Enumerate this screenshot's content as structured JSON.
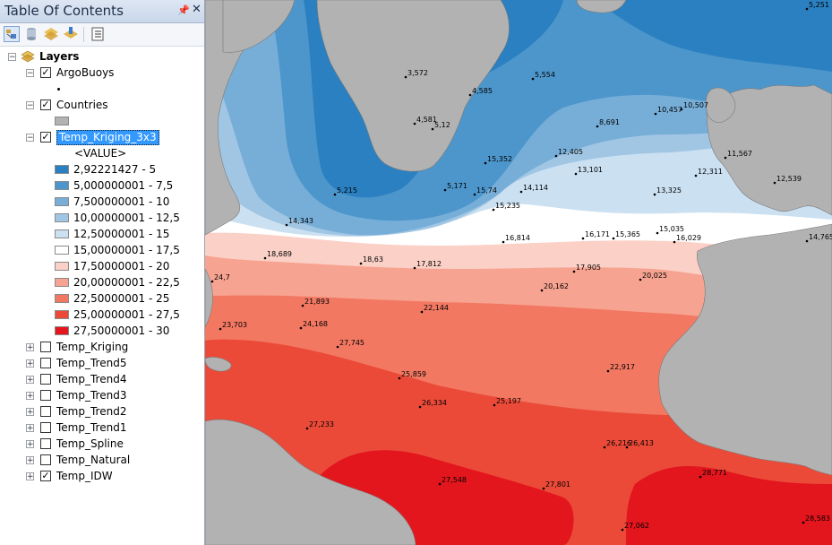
{
  "toc": {
    "title": "Table Of Contents",
    "pin_icon": "pin-icon",
    "close_icon": "close-icon",
    "toolbar": [
      "list-by-drawing-order-icon",
      "list-by-source-icon",
      "list-by-visibility-icon",
      "list-by-selection-icon",
      "options-icon"
    ],
    "root": {
      "label": "Layers",
      "expanded": true
    },
    "layers": [
      {
        "label": "ArgoBuoys",
        "checked": true,
        "expanded": true,
        "legend": "point"
      },
      {
        "label": "Countries",
        "checked": true,
        "expanded": true,
        "legend": "polygon"
      },
      {
        "label": "Temp_Kriging_3x3",
        "checked": true,
        "expanded": true,
        "selected": true,
        "value_header": "<VALUE>",
        "classes": [
          {
            "label": "2,92221427 - 5",
            "color": "#2a80c0"
          },
          {
            "label": "5,000000001 - 7,5",
            "color": "#4d96cb"
          },
          {
            "label": "7,500000001 - 10",
            "color": "#77aed8"
          },
          {
            "label": "10,00000001 - 12,5",
            "color": "#a1c6e4"
          },
          {
            "label": "12,50000001 - 15",
            "color": "#cbe0f1"
          },
          {
            "label": "15,00000001 - 17,5",
            "color": "#ffffff"
          },
          {
            "label": "17,50000001 - 20",
            "color": "#fbd0c6"
          },
          {
            "label": "20,00000001 - 22,5",
            "color": "#f7a391"
          },
          {
            "label": "22,50000001 - 25",
            "color": "#f27862"
          },
          {
            "label": "25,00000001 - 27,5",
            "color": "#eb4a38"
          },
          {
            "label": "27,50000001 - 30",
            "color": "#e3151d"
          }
        ]
      },
      {
        "label": "Temp_Kriging",
        "checked": false,
        "expanded": false
      },
      {
        "label": "Temp_Trend5",
        "checked": false,
        "expanded": false
      },
      {
        "label": "Temp_Trend4",
        "checked": false,
        "expanded": false
      },
      {
        "label": "Temp_Trend3",
        "checked": false,
        "expanded": false
      },
      {
        "label": "Temp_Trend2",
        "checked": false,
        "expanded": false
      },
      {
        "label": "Temp_Trend1",
        "checked": false,
        "expanded": false
      },
      {
        "label": "Temp_Spline",
        "checked": false,
        "expanded": false
      },
      {
        "label": "Temp_Natural",
        "checked": false,
        "expanded": false
      },
      {
        "label": "Temp_IDW",
        "checked": true,
        "expanded": false
      }
    ]
  },
  "map": {
    "land_color": "#b2b2b2",
    "points": [
      "5,251",
      "3,572",
      "5,554",
      "4,585",
      "4,581",
      "5,12",
      "10,457",
      "10,507",
      "8,691",
      "12,405",
      "15,352",
      "13,101",
      "11,567",
      "12,311",
      "12,539",
      "5,215",
      "5,171",
      "15,74",
      "14,114",
      "13,325",
      "15,235",
      "14,343",
      "16,814",
      "16,171",
      "15,365",
      "15,035",
      "16,029",
      "14,765",
      "18,689",
      "18,63",
      "17,812",
      "17,905",
      "20,025",
      "20,162",
      "24,7",
      "21,893",
      "22,144",
      "23,703",
      "24,168",
      "27,745",
      "22,917",
      "25,859",
      "26,334",
      "25,197",
      "27,233",
      "26,216",
      "26,413",
      "28,771",
      "27,548",
      "27,801",
      "27,062",
      "28,583"
    ]
  }
}
